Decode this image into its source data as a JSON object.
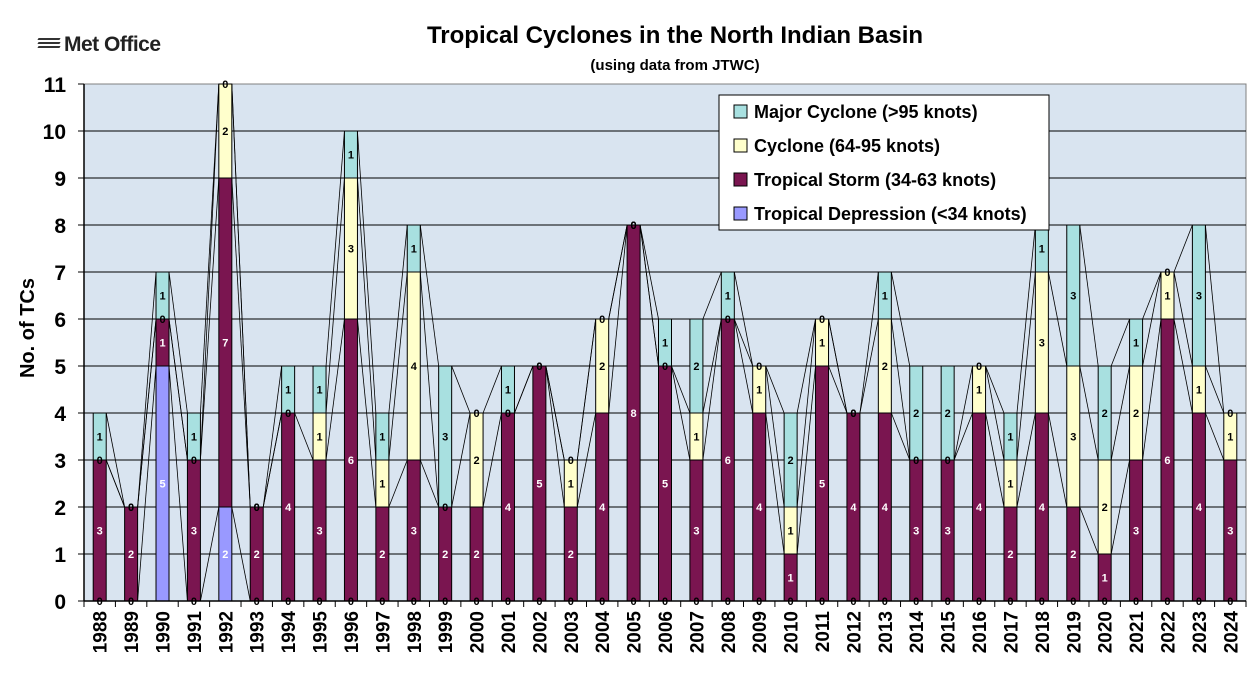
{
  "logo": {
    "text": "Met Office"
  },
  "chart_data": {
    "type": "bar",
    "stacked": true,
    "title": "Tropical Cyclones in the North Indian Basin",
    "subtitle": "(using data from JTWC)",
    "xlabel": "",
    "ylabel": "No. of TCs",
    "ylim": [
      0,
      11
    ],
    "yticks": [
      0,
      1,
      2,
      3,
      4,
      5,
      6,
      7,
      8,
      9,
      10,
      11
    ],
    "grid": true,
    "legend_position": "top-right",
    "categories": [
      "1988",
      "1989",
      "1990",
      "1991",
      "1992",
      "1993",
      "1994",
      "1995",
      "1996",
      "1997",
      "1998",
      "1999",
      "2000",
      "2001",
      "2002",
      "2003",
      "2004",
      "2005",
      "2006",
      "2007",
      "2008",
      "2009",
      "2010",
      "2011",
      "2012",
      "2013",
      "2014",
      "2015",
      "2016",
      "2017",
      "2018",
      "2019",
      "2020",
      "2021",
      "2022",
      "2023",
      "2024"
    ],
    "series": [
      {
        "name": "Tropical Depression (<34 knots)",
        "color": "#9999FF",
        "values": [
          0,
          0,
          5,
          0,
          2,
          0,
          0,
          0,
          0,
          0,
          0,
          0,
          0,
          0,
          0,
          0,
          0,
          0,
          0,
          0,
          0,
          0,
          0,
          0,
          0,
          0,
          0,
          0,
          0,
          0,
          0,
          0,
          0,
          0,
          0,
          0,
          0
        ]
      },
      {
        "name": "Tropical Storm (34-63 knots)",
        "color": "#7A1550",
        "values": [
          3,
          2,
          1,
          3,
          7,
          2,
          4,
          3,
          6,
          2,
          3,
          2,
          2,
          4,
          5,
          2,
          4,
          8,
          5,
          3,
          6,
          4,
          1,
          5,
          4,
          4,
          3,
          3,
          4,
          2,
          4,
          2,
          1,
          3,
          6,
          4,
          3
        ]
      },
      {
        "name": "Cyclone (64-95 knots)",
        "color": "#FFFFCC",
        "values": [
          0,
          0,
          0,
          0,
          2,
          0,
          0,
          1,
          3,
          1,
          4,
          0,
          2,
          0,
          0,
          1,
          2,
          0,
          0,
          1,
          0,
          1,
          1,
          1,
          0,
          2,
          0,
          0,
          1,
          1,
          3,
          3,
          2,
          2,
          1,
          1,
          1
        ]
      },
      {
        "name": "Major Cyclone (>95 knots)",
        "color": "#A8E0E0",
        "values": [
          1,
          0,
          1,
          1,
          0,
          0,
          1,
          1,
          1,
          1,
          1,
          3,
          0,
          1,
          0,
          0,
          0,
          0,
          1,
          2,
          1,
          0,
          2,
          0,
          0,
          1,
          2,
          2,
          0,
          1,
          1,
          3,
          2,
          1,
          0,
          3,
          0
        ]
      }
    ],
    "legend_order": [
      "Major Cyclone (>95 knots)",
      "Cyclone (64-95 knots)",
      "Tropical Storm (34-63 knots)",
      "Tropical Depression (<34 knots)"
    ],
    "plot_background": "#D9E4F0"
  }
}
